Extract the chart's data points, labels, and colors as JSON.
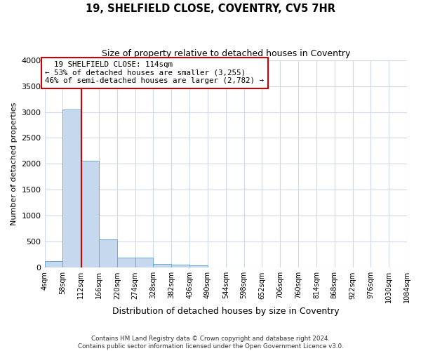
{
  "title1": "19, SHELFIELD CLOSE, COVENTRY, CV5 7HR",
  "title2": "Size of property relative to detached houses in Coventry",
  "xlabel": "Distribution of detached houses by size in Coventry",
  "ylabel": "Number of detached properties",
  "property_size": 114,
  "property_label": "19 SHELFIELD CLOSE: 114sqm",
  "pct_smaller": 53,
  "n_smaller": 3255,
  "pct_larger_semi": 46,
  "n_larger_semi": 2782,
  "bins": [
    4,
    58,
    112,
    166,
    220,
    274,
    328,
    382,
    436,
    490,
    544,
    598,
    652,
    706,
    760,
    814,
    868,
    922,
    976,
    1030,
    1084
  ],
  "bin_labels": [
    "4sqm",
    "58sqm",
    "112sqm",
    "166sqm",
    "220sqm",
    "274sqm",
    "328sqm",
    "382sqm",
    "436sqm",
    "490sqm",
    "544sqm",
    "598sqm",
    "652sqm",
    "706sqm",
    "760sqm",
    "814sqm",
    "868sqm",
    "922sqm",
    "976sqm",
    "1030sqm",
    "1084sqm"
  ],
  "counts": [
    130,
    3050,
    2060,
    540,
    195,
    195,
    70,
    55,
    50,
    0,
    0,
    0,
    0,
    0,
    0,
    0,
    0,
    0,
    0,
    0
  ],
  "bar_color": "#c5d8ee",
  "bar_edge_color": "#6aaad4",
  "vline_color": "#cc0000",
  "annotation_box_color": "#cc0000",
  "background_color": "#ffffff",
  "grid_color": "#cdd8ea",
  "footer1": "Contains HM Land Registry data © Crown copyright and database right 2024.",
  "footer2": "Contains public sector information licensed under the Open Government Licence v3.0.",
  "ylim": [
    0,
    4000
  ],
  "yticks": [
    0,
    500,
    1000,
    1500,
    2000,
    2500,
    3000,
    3500,
    4000
  ]
}
